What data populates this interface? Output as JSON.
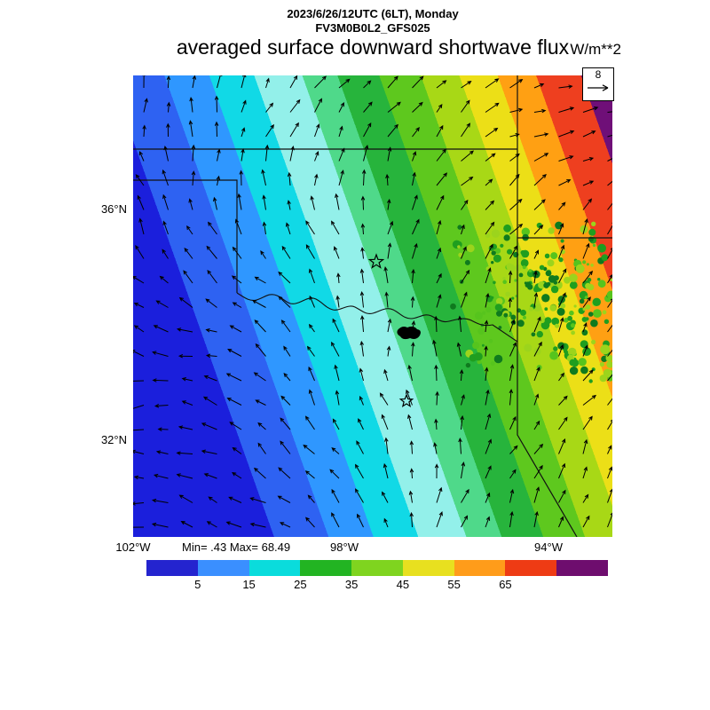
{
  "header": {
    "datetime_line": "2023/6/26/12UTC (6LT), Monday",
    "model_line": "FV3M0B0L2_GFS025",
    "title": "averaged surface downward shortwave flux",
    "units_label": "W/m**2"
  },
  "map": {
    "lat_labels": [
      "36°N",
      "32°N"
    ],
    "lon_labels": [
      "102°W",
      "98°W",
      "94°W"
    ],
    "stats_label": "Min= .43 Max= 68.49",
    "reference_vector_value": "8"
  },
  "chart_data": {
    "type": "heatmap",
    "title": "averaged surface downward shortwave flux",
    "units": "W/m**2",
    "valid_time": "2023/6/26/12UTC (6LT), Monday",
    "model": "FV3M0B0L2_GFS025",
    "min": 0.43,
    "max": 68.49,
    "lat_ticks": [
      "36°N",
      "32°N"
    ],
    "lon_ticks": [
      "102°W",
      "98°W",
      "94°W"
    ],
    "wind_reference_vector": 8,
    "legend_position": "bottom",
    "colorbar": {
      "orientation": "horizontal",
      "tick_labels": [
        "5",
        "15",
        "25",
        "35",
        "45",
        "55",
        "65"
      ],
      "segment_colors": [
        "#2424cf",
        "#3a8fff",
        "#0adcdc",
        "#22b422",
        "#7fd41f",
        "#e8e01f",
        "#ff9c1a",
        "#ee3b14",
        "#6e0d6e"
      ]
    },
    "field_bands": [
      {
        "color": "#1b1fdc",
        "to": 0.22
      },
      {
        "color": "#2e62f2",
        "to": 0.305
      },
      {
        "color": "#2f97ff",
        "to": 0.375
      },
      {
        "color": "#11d9e6",
        "to": 0.445
      },
      {
        "color": "#93f0ea",
        "to": 0.52
      },
      {
        "color": "#4fd98a",
        "to": 0.575
      },
      {
        "color": "#27b43c",
        "to": 0.64
      },
      {
        "color": "#5ec81e",
        "to": 0.705
      },
      {
        "color": "#a8d816",
        "to": 0.765
      },
      {
        "color": "#ecdf17",
        "to": 0.825
      },
      {
        "color": "#ffa013",
        "to": 0.885
      },
      {
        "color": "#ee3f1f",
        "to": 0.955
      },
      {
        "color": "#6f0f78",
        "to": 1.0
      }
    ],
    "location_markers": {
      "symbol": "star",
      "count": 2
    }
  }
}
